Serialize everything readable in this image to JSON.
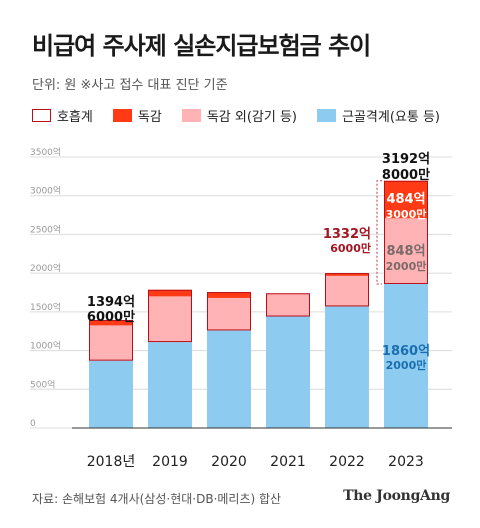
{
  "title": "비급여 주사제 실손지급보험금 추이",
  "subtitle": "단위: 원   ※사고 접수 대표 진단 기준",
  "legend": [
    {
      "label": "호흡계",
      "color": "#ffffff",
      "border": "#b8101a"
    },
    {
      "label": "독감",
      "color": "#ff3a14",
      "border": "#ff3a14"
    },
    {
      "label": "독감 외(감기 등)",
      "color": "#ffb3b5",
      "border": "#ffb3b5"
    },
    {
      "label": "근골격계(요통 등)",
      "color": "#8ecbf0",
      "border": "#8ecbf0"
    }
  ],
  "source": "자료: 손해보험 4개사(삼성·현대·DB·메리츠) 합산",
  "brand": "The JoongAng",
  "chart_data": {
    "type": "bar",
    "stacked": true,
    "categories": [
      "2018년",
      "2019",
      "2020",
      "2021",
      "2022",
      "2023"
    ],
    "series": [
      {
        "name": "근골격계(요통 등)",
        "color": "#8ecbf0",
        "values": [
          870,
          1110,
          1260,
          1440,
          1570,
          1860.2
        ]
      },
      {
        "name": "독감 외(감기 등)",
        "color": "#ffb3b5",
        "values": [
          455,
          590,
          420,
          300,
          395,
          848.2
        ]
      },
      {
        "name": "독감",
        "color": "#ff3a14",
        "values": [
          69.6,
          85,
          75,
          0,
          35,
          484.3
        ]
      }
    ],
    "y_ticks": [
      0,
      500,
      1000,
      1500,
      2000,
      2500,
      3000,
      3500
    ],
    "y_tick_labels": [
      "0",
      "500억",
      "1000억",
      "1500억",
      "2000억",
      "2500억",
      "3000억",
      "3500억"
    ],
    "ylim": [
      0,
      3500
    ],
    "grid": true,
    "annotations": {
      "total_2018": [
        "1394억",
        "6000만"
      ],
      "total_2023": [
        "3192억",
        "8000만"
      ],
      "resp_2023": [
        "1332억",
        "6000만"
      ],
      "flu_2023": [
        "484억",
        "3000만"
      ],
      "other_2023": [
        "848억",
        "2000만"
      ],
      "musc_2023": [
        "1860억",
        "2000만"
      ]
    }
  }
}
